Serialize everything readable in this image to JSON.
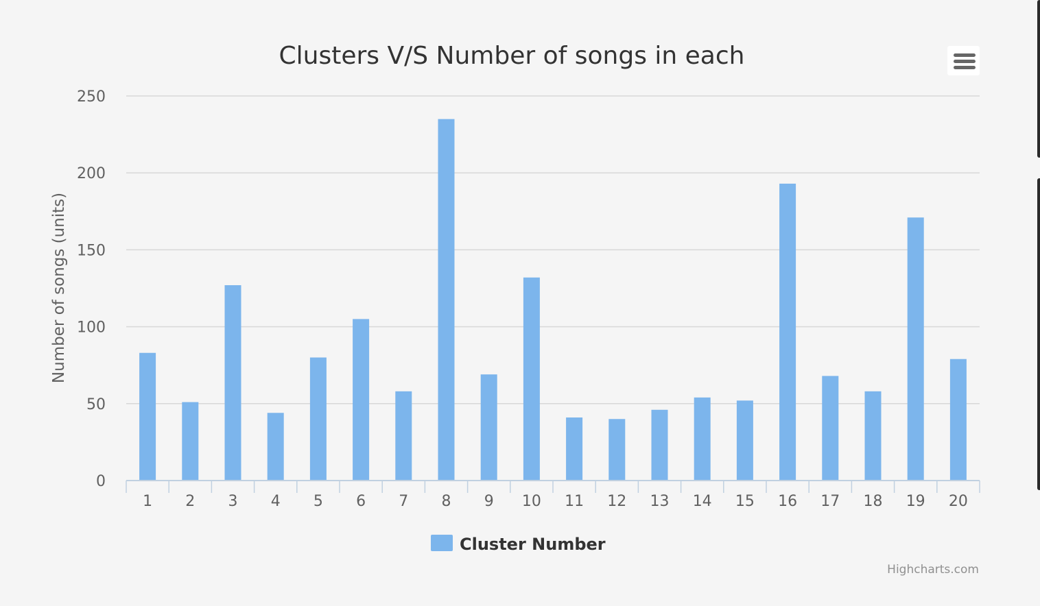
{
  "chart_data": {
    "type": "bar",
    "title": "Clusters V/S Number of songs in each",
    "ylabel": "Number of songs (units)",
    "xlabel": "",
    "categories": [
      "1",
      "2",
      "3",
      "4",
      "5",
      "6",
      "7",
      "8",
      "9",
      "10",
      "11",
      "12",
      "13",
      "14",
      "15",
      "16",
      "17",
      "18",
      "19",
      "20"
    ],
    "series": [
      {
        "name": "Cluster Number",
        "values": [
          83,
          51,
          127,
          44,
          80,
          105,
          58,
          235,
          69,
          132,
          41,
          40,
          46,
          54,
          52,
          193,
          68,
          58,
          171,
          79
        ],
        "color": "#7cb5ec"
      }
    ],
    "ylim": [
      0,
      250
    ],
    "yticks": [
      0,
      50,
      100,
      150,
      200,
      250
    ],
    "grid": true,
    "legend_position": "bottom-center",
    "credits": "Highcharts.com",
    "colors": {
      "background": "#f5f5f5",
      "gridline": "#d8d8d8",
      "axis": "#c0d0e0",
      "text": "#333333",
      "tick_text": "#606060",
      "credits_text": "#909090"
    },
    "menu_icon": "hamburger-menu-icon"
  }
}
